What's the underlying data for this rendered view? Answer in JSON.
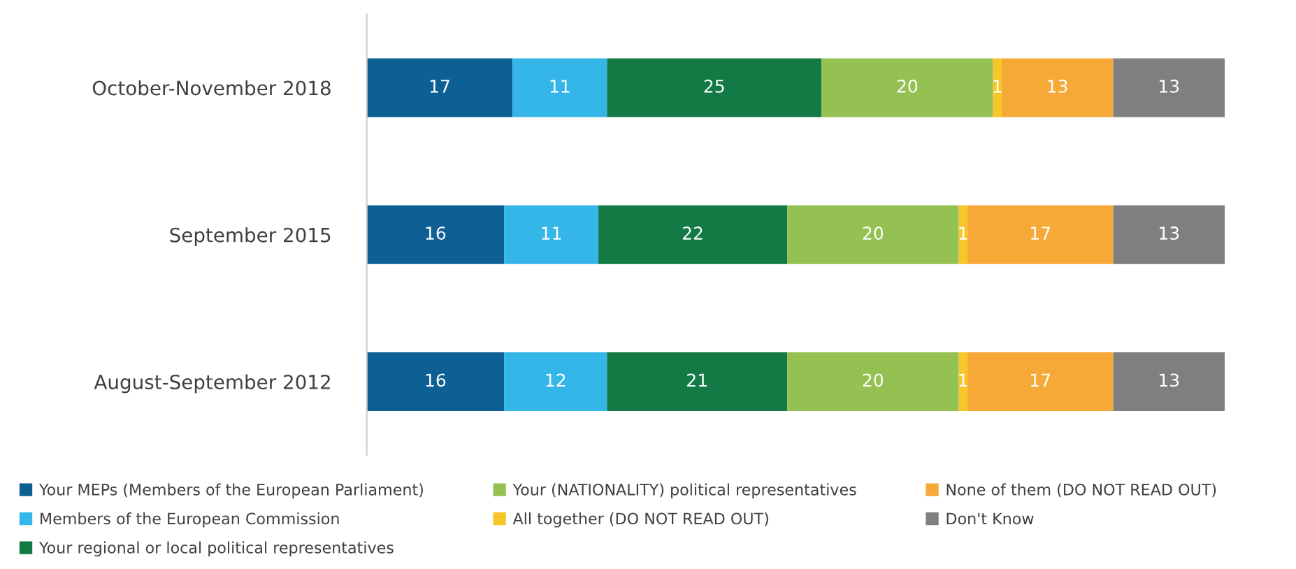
{
  "chart_data": {
    "type": "bar",
    "orientation": "horizontal",
    "stacked": true,
    "data_labels": true,
    "legend": "bottom",
    "grid": false,
    "categories": [
      "October-November 2018",
      "September 2015",
      "August-September 2012"
    ],
    "series": [
      {
        "name": "Your MEPs (Members of the European Parliament)",
        "color": "#0e5f93",
        "values": [
          17,
          16,
          16
        ]
      },
      {
        "name": "Members of the European Commission",
        "color": "#35b6e9",
        "values": [
          11,
          11,
          12
        ]
      },
      {
        "name": "Your regional or local political representatives",
        "color": "#137a45",
        "values": [
          25,
          22,
          21
        ]
      },
      {
        "name": "Your (NATIONALITY) political representatives",
        "color": "#95c152",
        "values": [
          20,
          20,
          20
        ]
      },
      {
        "name": "All together (DO NOT READ OUT)",
        "color": "#f7c628",
        "values": [
          1,
          1,
          1
        ]
      },
      {
        "name": "None of them (DO NOT READ OUT)",
        "color": "#f6a937",
        "values": [
          13,
          17,
          17
        ]
      },
      {
        "name": "Don't Know",
        "color": "#7f7f7f",
        "values": [
          13,
          13,
          13
        ]
      }
    ]
  }
}
